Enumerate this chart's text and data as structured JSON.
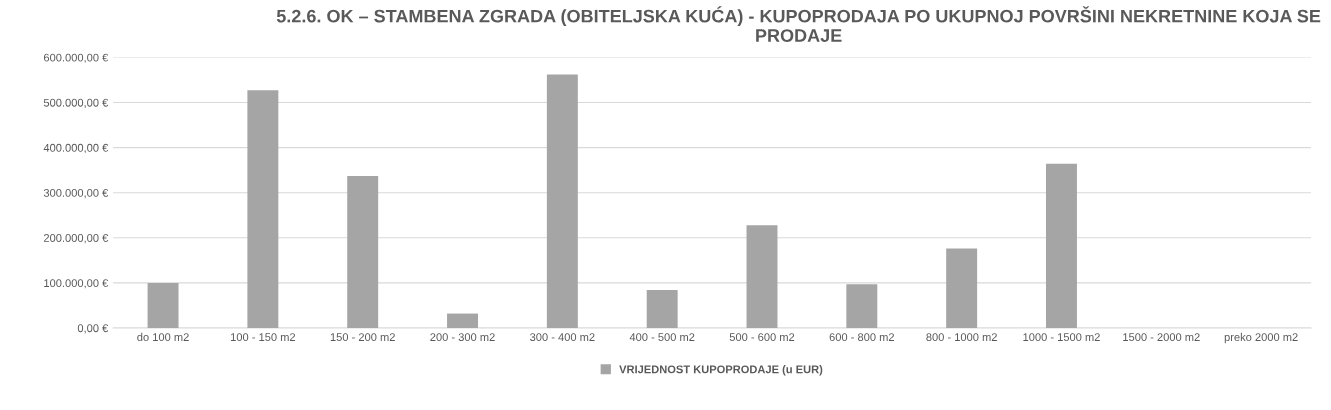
{
  "chart_data": {
    "type": "bar",
    "title": "5.2.6. OK – STAMBENA ZGRADA (OBITELJSKA KUĆA) - KUPOPRODAJA PO UKUPNOJ POVRŠINI NEKRETNINE KOJA SE PRODAJE",
    "categories": [
      "do 100 m2",
      "100 - 150 m2",
      "150 - 200 m2",
      "200 - 300 m2",
      "300 - 400 m2",
      "400 - 500 m2",
      "500 - 600 m2",
      "600 - 800 m2",
      "800 - 1000 m2",
      "1000 - 1500 m2",
      "1500 - 2000 m2",
      "preko 2000 m2"
    ],
    "series": [
      {
        "name": "VRIJEDNOST KUPOPRODAJE (u EUR)",
        "color": "#a5a5a5",
        "values": [
          100000,
          527000,
          337000,
          32000,
          562000,
          84000,
          228000,
          97000,
          176000,
          364000,
          0,
          0
        ]
      }
    ],
    "ylim": [
      0,
      600000
    ],
    "yticks": [
      {
        "value": 0,
        "label": "0,00 €"
      },
      {
        "value": 100000,
        "label": "100.000,00 €"
      },
      {
        "value": 200000,
        "label": "200.000,00 €"
      },
      {
        "value": 300000,
        "label": "300.000,00 €"
      },
      {
        "value": 400000,
        "label": "400.000,00 €"
      },
      {
        "value": 500000,
        "label": "500.000,00 €"
      },
      {
        "value": 600000,
        "label": "600.000,00 €"
      }
    ],
    "grid": "y",
    "legend": "bottom"
  }
}
